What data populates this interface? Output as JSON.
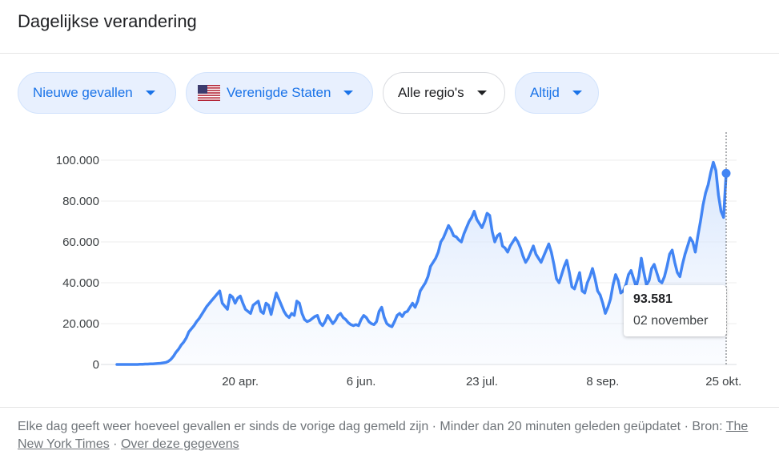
{
  "header": {
    "title": "Dagelijkse verandering"
  },
  "filters": [
    {
      "label": "Nieuwe gevallen"
    },
    {
      "label": "Verenigde Staten",
      "icon": "us-flag-icon"
    },
    {
      "label": "Alle regio's"
    },
    {
      "label": "Altijd"
    }
  ],
  "tooltip": {
    "value": "93.581",
    "date": "02 november"
  },
  "footer": {
    "text": "Elke dag geeft weer hoeveel gevallen er sinds de vorige dag gemeld zijn · Minder dan 20 minuten geleden geüpdatet",
    "source_prefix": "· Bron:",
    "source_link": "The New York Times",
    "separator": "·",
    "about_link": "Over deze gegevens"
  },
  "colors": {
    "line": "#4285f4",
    "accent_blue": "#1a73e8",
    "chip_bg": "#e8f0fe",
    "area_fill": "#e8f0fe"
  },
  "chart_data": {
    "type": "line",
    "title": "",
    "xlabel": "",
    "ylabel": "",
    "ylim": [
      0,
      100000
    ],
    "yticks": [
      0,
      20000,
      40000,
      60000,
      80000,
      100000
    ],
    "ytick_labels": [
      "0",
      "20.000",
      "40.000",
      "60.000",
      "80.000",
      "100.000"
    ],
    "xtick_labels": [
      "20 apr.",
      "6 jun.",
      "23 jul.",
      "8 sep.",
      "25 okt."
    ],
    "xtick_index": [
      48,
      95,
      142,
      189,
      236
    ],
    "grid": true,
    "series": [
      {
        "values": [
          0,
          0,
          0,
          0,
          0,
          0,
          0,
          0,
          0,
          100,
          100,
          200,
          200,
          300,
          300,
          400,
          500,
          600,
          800,
          1000,
          1500,
          2500,
          4000,
          6000,
          7500,
          9500,
          11000,
          13000,
          16000,
          17500,
          19000,
          21000,
          22500,
          24500,
          26500,
          28500,
          30000,
          31500,
          33000,
          34500,
          36000,
          30000,
          28500,
          27000,
          34000,
          33000,
          30000,
          32500,
          33500,
          30000,
          27000,
          26000,
          25000,
          29000,
          30000,
          31000,
          26000,
          25000,
          30000,
          29000,
          24500,
          30000,
          35000,
          32000,
          29000,
          26000,
          24000,
          23000,
          25000,
          24000,
          31000,
          30000,
          25000,
          22000,
          21000,
          21500,
          22500,
          23500,
          24000,
          20500,
          19000,
          21000,
          24000,
          22000,
          20000,
          21500,
          24000,
          25000,
          23000,
          22000,
          20500,
          19500,
          19000,
          19500,
          19000,
          22000,
          24000,
          23000,
          21000,
          20000,
          19500,
          21000,
          26000,
          28000,
          23000,
          20000,
          19000,
          18500,
          21000,
          24000,
          25000,
          23500,
          25500,
          26000,
          28000,
          30000,
          28000,
          31000,
          36000,
          38000,
          40000,
          43000,
          48000,
          50000,
          52000,
          55000,
          60000,
          62000,
          65000,
          68000,
          66000,
          63000,
          62500,
          61000,
          60000,
          64000,
          67000,
          70000,
          72000,
          75000,
          71000,
          69000,
          67000,
          70000,
          74000,
          73000,
          65000,
          60000,
          63000,
          64000,
          58000,
          57000,
          55000,
          58000,
          60000,
          62000,
          60000,
          57000,
          53000,
          50000,
          52000,
          55000,
          58000,
          54000,
          52000,
          50000,
          53000,
          56000,
          59000,
          55000,
          49000,
          42000,
          40000,
          44000,
          48000,
          51000,
          45000,
          38000,
          37000,
          41000,
          45000,
          36000,
          35000,
          40000,
          43000,
          47000,
          42000,
          36000,
          34000,
          30000,
          25000,
          28000,
          32000,
          39000,
          44000,
          41000,
          35000,
          36000,
          39000,
          44000,
          46000,
          42000,
          38000,
          43000,
          52000,
          45000,
          39000,
          41000,
          47000,
          49000,
          45000,
          41000,
          40000,
          43000,
          48000,
          54000,
          56000,
          50000,
          45000,
          43000,
          49000,
          54000,
          58000,
          62000,
          60000,
          55000,
          63000,
          70000,
          78000,
          84000,
          88000,
          94000,
          99000,
          95000,
          83000,
          75000,
          72000,
          93581
        ]
      }
    ]
  }
}
